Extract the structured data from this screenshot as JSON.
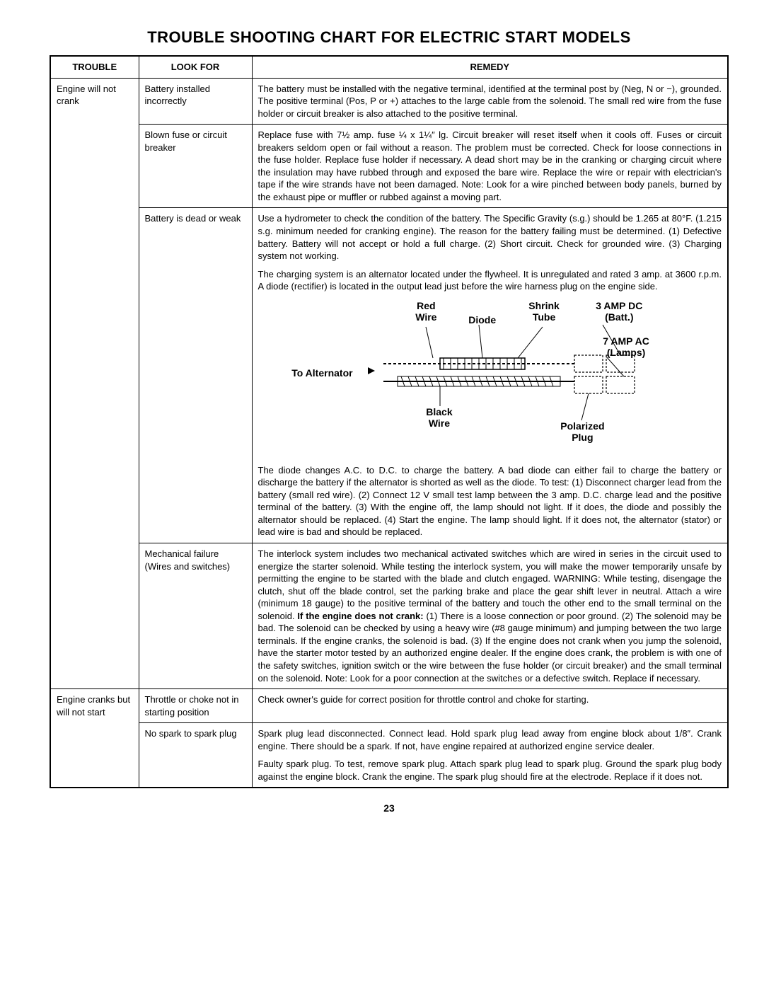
{
  "title": "TROUBLE SHOOTING CHART FOR ELECTRIC START MODELS",
  "page_number": "23",
  "headers": {
    "trouble": "TROUBLE",
    "look": "LOOK FOR",
    "remedy": "REMEDY"
  },
  "diagram": {
    "red_wire": "Red\nWire",
    "diode": "Diode",
    "shrink_tube": "Shrink\nTube",
    "amp_dc": "3 AMP DC\n(Batt.)",
    "amp_ac": "7 AMP AC\n(Lamps)",
    "to_alt": "To Alternator",
    "black_wire": "Black\nWire",
    "polarized": "Polarized\nPlug"
  },
  "rows": [
    {
      "trouble": "Engine will not crank",
      "items": [
        {
          "look": "Battery installed incorrectly",
          "remedy": [
            "The battery must be installed with the negative terminal, identified at the terminal post by (Neg, N or −), grounded. The positive terminal (Pos, P or +) attaches to the large cable from the solenoid. The small red wire from the fuse holder or circuit breaker is also attached to the positive terminal."
          ]
        },
        {
          "look": "Blown fuse or circuit breaker",
          "remedy": [
            "Replace fuse with 7½ amp. fuse ¼ x 1¼″ lg. Circuit breaker will reset itself when it cools off. Fuses or circuit breakers seldom open or fail without a reason. The problem must be corrected. Check for loose connections in the fuse holder. Replace fuse holder if necessary. A dead short may be in the cranking or charging circuit where the insulation may have rubbed through and exposed the bare wire. Replace the wire or repair with electrician's tape if the wire strands have not been damaged. Note: Look for a wire pinched between body panels, burned by the exhaust pipe or muffler or rubbed against a moving part."
          ]
        },
        {
          "look": "Battery is dead or weak",
          "remedy": [
            "Use a hydrometer to check the condition of the battery. The Specific Gravity (s.g.) should be 1.265 at 80°F. (1.215 s.g. minimum needed for cranking engine). The reason for the battery failing must be determined. (1) Defective battery. Battery will not accept or hold a full charge. (2) Short circuit. Check for grounded wire. (3) Charging system not working.",
            "The charging system is an alternator located under the flywheel. It is unregulated and rated 3 amp. at 3600 r.p.m. A diode (rectifier) is located in the output lead just before the wire harness plug on the engine side."
          ],
          "has_diagram": true,
          "remedy_after": [
            "The diode changes A.C. to D.C. to charge the battery. A bad diode can either fail to charge the battery or discharge the battery if the alternator is shorted as well as the diode. To test: (1) Disconnect charger lead from the battery (small red wire). (2) Connect 12 V small test lamp between the 3 amp. D.C. charge lead and the positive terminal of the battery. (3) With the engine off, the lamp should not light. If it does, the diode and possibly the alternator should be replaced. (4) Start the engine. The lamp should light. If it does not, the alternator (stator) or lead wire is bad and should be replaced."
          ]
        },
        {
          "look": "Mechanical failure (Wires and switches)",
          "remedy": [
            "The interlock system includes two mechanical activated switches which are wired in series in the circuit used to energize the starter solenoid. While testing the interlock system, you will make the mower temporarily unsafe by permitting the engine to be started with the blade and clutch engaged. WARNING: While testing, disengage the clutch, shut off the blade control, set the parking brake and place the gear shift lever in neutral. Attach a wire (minimum 18 gauge) to the positive terminal of the battery and touch the other end to the small terminal on the solenoid. <b>If the engine does not crank:</b> (1) There is a loose connection or poor ground. (2) The solenoid may be bad. The solenoid can be checked by using a heavy wire (#8 gauge minimum) and jumping between the two large terminals. If the engine cranks, the solenoid is bad. (3) If the engine does not crank when you jump the solenoid, have the starter motor tested by an authorized engine dealer. If the engine does crank, the problem is with one of the safety switches, ignition switch or the wire between the fuse holder (or circuit breaker) and the small terminal on the solenoid. Note: Look for a poor connection at the switches or a defective switch. Replace if necessary."
          ]
        }
      ]
    },
    {
      "trouble": "Engine cranks but will not start",
      "items": [
        {
          "look": "Throttle or choke not in starting position",
          "remedy": [
            "Check owner's guide for correct position for throttle control and choke for starting."
          ]
        },
        {
          "look": "No spark to spark plug",
          "remedy": [
            "Spark plug lead disconnected. Connect lead. Hold spark plug lead away from engine block about 1/8″. Crank engine. There should be a spark. If not, have engine repaired at authorized engine service dealer.",
            "Faulty spark plug. To test, remove spark plug. Attach spark plug lead to spark plug. Ground the spark plug body against the engine block. Crank the engine. The spark plug should fire at the electrode. Replace if it does not."
          ]
        }
      ]
    }
  ]
}
